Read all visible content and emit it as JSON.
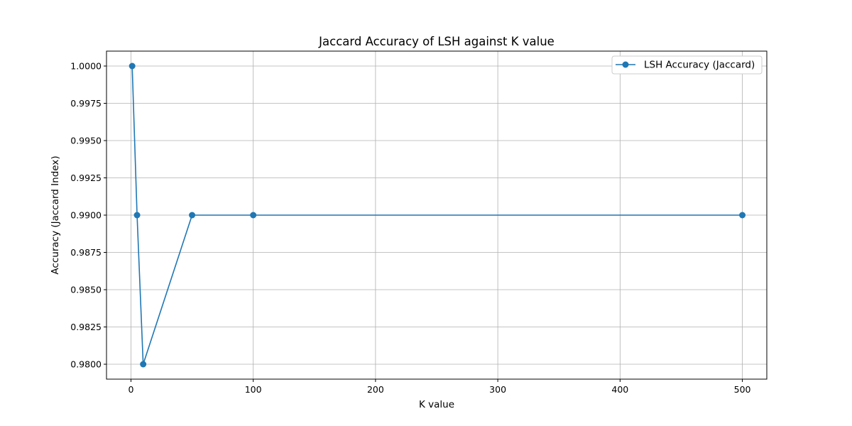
{
  "chart_data": {
    "type": "line",
    "title": "Jaccard Accuracy of LSH against K value",
    "xlabel": "K value",
    "ylabel": "Accuracy (Jaccard Index)",
    "xlim": [
      -20,
      520
    ],
    "ylim": [
      0.979,
      1.001
    ],
    "xticks": [
      0,
      100,
      200,
      300,
      400,
      500
    ],
    "xtick_labels": [
      "0",
      "100",
      "200",
      "300",
      "400",
      "500"
    ],
    "yticks": [
      0.98,
      0.9825,
      0.985,
      0.9875,
      0.99,
      0.9925,
      0.995,
      0.9975,
      1.0
    ],
    "ytick_labels": [
      "0.9800",
      "0.9825",
      "0.9850",
      "0.9875",
      "0.9900",
      "0.9925",
      "0.9950",
      "0.9975",
      "1.0000"
    ],
    "grid": true,
    "legend_position": "upper-right",
    "series": [
      {
        "name": "LSH Accuracy (Jaccard)",
        "color": "#1f77b4",
        "marker": "circle",
        "x": [
          1,
          5,
          10,
          50,
          100,
          500
        ],
        "y": [
          1.0,
          0.99,
          0.98,
          0.99,
          0.99,
          0.99
        ]
      }
    ]
  }
}
